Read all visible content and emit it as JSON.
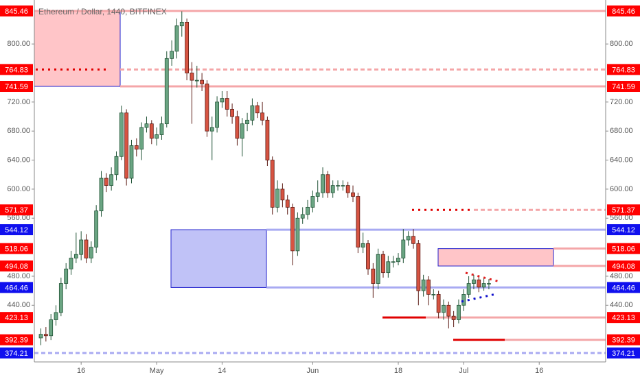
{
  "chart_data": {
    "type": "candlestick",
    "title": "Ethereum / Dollar, 1440, BITFINEX",
    "up_color": "#6ba583",
    "down_color": "#d75442",
    "open": [
      395,
      400,
      398,
      420,
      430,
      470,
      490,
      505,
      510,
      530,
      505,
      520,
      570,
      615,
      605,
      620,
      645,
      705,
      615,
      660,
      655,
      685,
      690,
      670,
      675,
      690,
      780,
      790,
      825,
      830,
      760,
      750,
      750,
      745,
      680,
      685,
      720,
      725,
      710,
      700,
      670,
      690,
      695,
      715,
      705,
      695,
      640,
      575,
      600,
      585,
      575,
      515,
      560,
      565,
      575,
      590,
      595,
      620,
      595,
      605,
      605,
      605,
      595,
      590,
      520,
      525,
      490,
      470,
      510,
      485,
      500,
      500,
      505,
      530,
      535,
      525,
      460,
      475,
      455,
      455,
      430,
      440,
      425,
      420,
      440,
      455,
      470,
      475,
      465,
      470
    ],
    "high": [
      408,
      410,
      428,
      440,
      478,
      498,
      515,
      540,
      542,
      538,
      528,
      578,
      625,
      622,
      630,
      652,
      715,
      710,
      668,
      670,
      692,
      700,
      695,
      685,
      700,
      790,
      805,
      835,
      845,
      835,
      775,
      770,
      760,
      750,
      700,
      728,
      735,
      735,
      718,
      708,
      698,
      705,
      725,
      720,
      720,
      700,
      645,
      612,
      608,
      592,
      580,
      568,
      575,
      585,
      598,
      612,
      630,
      625,
      612,
      612,
      612,
      610,
      605,
      595,
      540,
      530,
      498,
      518,
      515,
      508,
      508,
      512,
      545,
      542,
      545,
      530,
      482,
      480,
      462,
      460,
      448,
      445,
      432,
      448,
      462,
      480,
      482,
      480,
      478,
      476
    ],
    "low": [
      385,
      390,
      392,
      412,
      425,
      462,
      482,
      498,
      502,
      498,
      498,
      512,
      562,
      596,
      598,
      612,
      640,
      605,
      608,
      645,
      640,
      678,
      662,
      660,
      668,
      685,
      770,
      780,
      810,
      750,
      690,
      740,
      735,
      672,
      640,
      678,
      712,
      700,
      690,
      660,
      645,
      680,
      688,
      698,
      688,
      632,
      565,
      568,
      575,
      565,
      495,
      508,
      552,
      558,
      568,
      582,
      588,
      588,
      588,
      598,
      598,
      588,
      582,
      512,
      512,
      482,
      450,
      462,
      478,
      478,
      492,
      495,
      498,
      522,
      518,
      440,
      452,
      440,
      448,
      422,
      420,
      408,
      410,
      415,
      432,
      450,
      462,
      458,
      460,
      462
    ],
    "close": [
      400,
      398,
      420,
      430,
      470,
      490,
      505,
      510,
      530,
      505,
      520,
      570,
      615,
      605,
      620,
      645,
      705,
      615,
      660,
      655,
      685,
      690,
      670,
      675,
      690,
      780,
      790,
      825,
      830,
      760,
      750,
      750,
      745,
      680,
      685,
      720,
      725,
      710,
      700,
      670,
      690,
      695,
      715,
      705,
      695,
      640,
      575,
      600,
      585,
      575,
      515,
      560,
      565,
      575,
      590,
      595,
      620,
      595,
      605,
      605,
      605,
      595,
      590,
      520,
      525,
      490,
      470,
      510,
      485,
      500,
      500,
      505,
      530,
      535,
      525,
      460,
      475,
      455,
      455,
      430,
      440,
      425,
      420,
      440,
      455,
      470,
      475,
      465,
      470,
      470
    ],
    "xlim": [
      -1.3,
      112.2
    ],
    "xticks": [
      {
        "value": 8,
        "label": "16"
      },
      {
        "value": 23,
        "label": "May"
      },
      {
        "value": 36,
        "label": "14"
      },
      {
        "value": 54,
        "label": "Jun"
      },
      {
        "value": 71,
        "label": "18"
      },
      {
        "value": 84,
        "label": "Jul"
      },
      {
        "value": 99,
        "label": "16"
      }
    ],
    "ylim": [
      361.9,
      860.6
    ],
    "yticks": [
      {
        "value": 440,
        "label": "440.00"
      },
      {
        "value": 480,
        "label": "480.00"
      },
      {
        "value": 560,
        "label": "560.00"
      },
      {
        "value": 600,
        "label": "600.00"
      },
      {
        "value": 640,
        "label": "640.00"
      },
      {
        "value": 680,
        "label": "680.00"
      },
      {
        "value": 720,
        "label": "720.00"
      },
      {
        "value": 800,
        "label": "800.00"
      }
    ],
    "levels": [
      {
        "value": 845.46,
        "color": "#ff0000"
      },
      {
        "value": 764.83,
        "color": "#ff0000"
      },
      {
        "value": 741.59,
        "color": "#ff0000"
      },
      {
        "value": 571.37,
        "color": "#ff0000"
      },
      {
        "value": 544.12,
        "color": "#1010ee"
      },
      {
        "value": 518.06,
        "color": "#ff0000"
      },
      {
        "value": 494.08,
        "color": "#ff0000"
      },
      {
        "value": 464.46,
        "color": "#1010ee"
      },
      {
        "value": 423.13,
        "color": "#ff0000"
      },
      {
        "value": 392.39,
        "color": "#ff0000"
      },
      {
        "value": 374.21,
        "color": "#1010ee"
      }
    ]
  }
}
